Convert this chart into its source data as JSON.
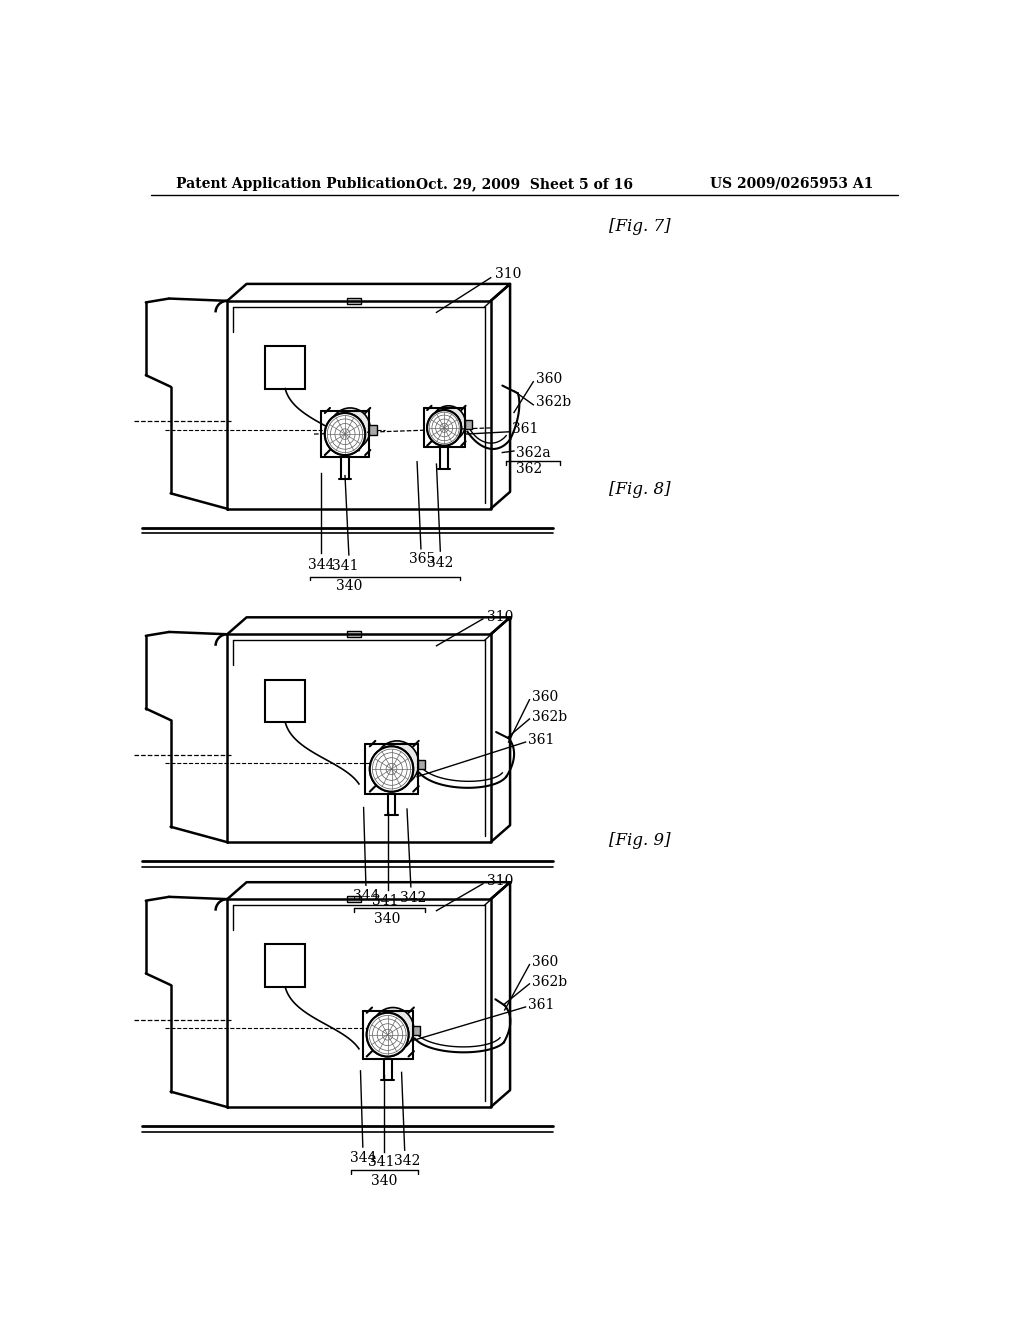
{
  "background_color": "#ffffff",
  "header_left": "Patent Application Publication",
  "header_mid": "Oct. 29, 2009  Sheet 5 of 16",
  "header_right": "US 2009/0265953 A1",
  "fig7_label": "[Fig. 7]",
  "fig8_label": "[Fig. 8]",
  "fig9_label": "[Fig. 9]",
  "line_color": "#000000",
  "text_color": "#000000",
  "font_size_header": 10,
  "font_size_label": 10
}
